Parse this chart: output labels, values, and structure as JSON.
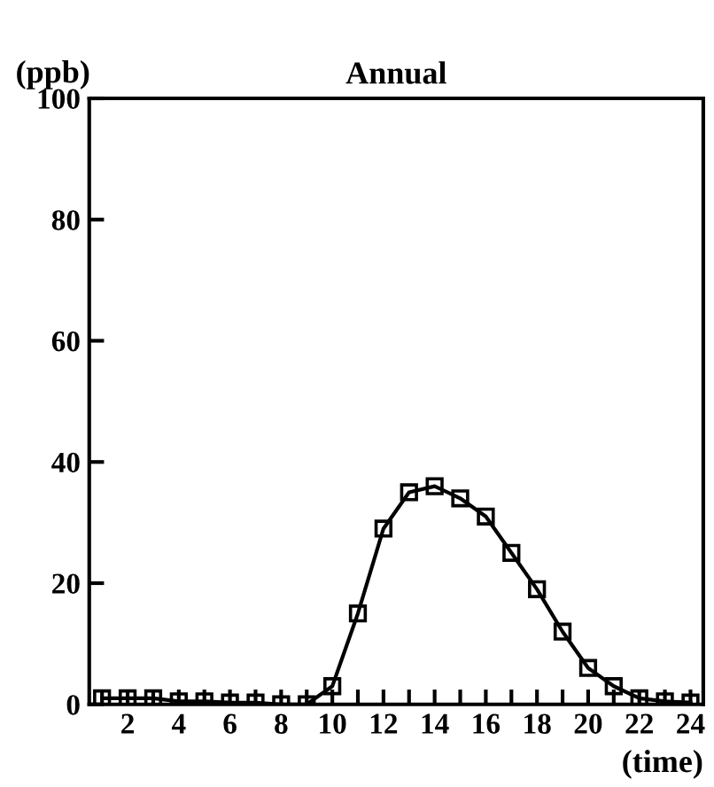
{
  "chart_data": {
    "type": "line",
    "title": "Annual",
    "ylabel": "(ppb)",
    "xlabel": "(time)",
    "x": [
      1,
      2,
      3,
      4,
      5,
      6,
      7,
      8,
      9,
      10,
      11,
      12,
      13,
      14,
      15,
      16,
      17,
      18,
      19,
      20,
      21,
      22,
      23,
      24
    ],
    "values": [
      1,
      1,
      1,
      0.5,
      0.5,
      0.3,
      0.3,
      0,
      0,
      3,
      15,
      29,
      35,
      36,
      34,
      31,
      25,
      19,
      12,
      6,
      3,
      1,
      0.5,
      0.3
    ],
    "color": "#000000",
    "marker": "square",
    "line_style": "solid",
    "xlim": [
      0.5,
      24.5
    ],
    "xticks": [
      {
        "value": 1,
        "label": null
      },
      2,
      {
        "value": 3,
        "label": null
      },
      4,
      {
        "value": 5,
        "label": null
      },
      6,
      {
        "value": 7,
        "label": null
      },
      8,
      {
        "value": 9,
        "label": null
      },
      10,
      {
        "value": 11,
        "label": null
      },
      12,
      {
        "value": 13,
        "label": null
      },
      14,
      {
        "value": 15,
        "label": null
      },
      16,
      {
        "value": 17,
        "label": null
      },
      18,
      {
        "value": 19,
        "label": null
      },
      20,
      {
        "value": 21,
        "label": null
      },
      22,
      {
        "value": 23,
        "label": null
      },
      24
    ],
    "ylim": [
      0,
      100
    ],
    "yticks": [
      0,
      20,
      40,
      60,
      80,
      100
    ],
    "grid": false,
    "legend": false
  }
}
